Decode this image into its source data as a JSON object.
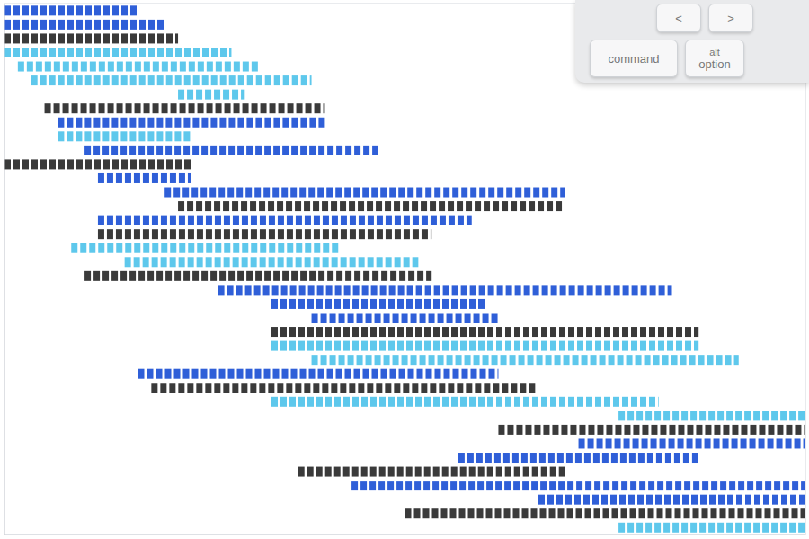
{
  "chart_data": {
    "type": "bar",
    "orientation": "horizontal",
    "grid": true,
    "tick_labels": false,
    "categories": [
      null,
      null,
      null,
      null,
      null,
      null,
      null,
      null,
      null,
      null,
      null,
      null,
      null,
      null,
      null,
      null,
      null,
      null,
      null,
      null,
      null,
      null,
      null,
      null,
      null,
      null,
      null,
      null,
      null,
      null,
      null,
      null,
      null,
      null,
      null,
      null,
      null,
      null
    ],
    "values": [
      [
        0,
        10
      ],
      [
        0,
        12
      ],
      [
        0,
        13
      ],
      [
        0,
        17
      ],
      [
        1,
        19
      ],
      [
        2,
        23
      ],
      [
        13,
        18
      ],
      [
        3,
        24
      ],
      [
        4,
        24
      ],
      [
        4,
        14
      ],
      [
        6,
        28
      ],
      [
        0,
        14
      ],
      [
        7,
        14
      ],
      [
        12,
        42
      ],
      [
        13,
        42
      ],
      [
        7,
        35
      ],
      [
        7,
        32
      ],
      [
        5,
        25
      ],
      [
        9,
        31
      ],
      [
        6,
        32
      ],
      [
        16,
        50
      ],
      [
        20,
        36
      ],
      [
        23,
        37
      ],
      [
        20,
        52
      ],
      [
        20,
        52
      ],
      [
        23,
        55
      ],
      [
        10,
        37
      ],
      [
        11,
        40
      ],
      [
        20,
        49
      ],
      [
        46,
        60
      ],
      [
        37,
        60
      ],
      [
        43,
        60
      ],
      [
        34,
        52
      ],
      [
        22,
        42
      ],
      [
        26,
        60
      ],
      [
        40,
        60
      ],
      [
        30,
        60
      ],
      [
        46,
        60
      ]
    ],
    "colors": [
      "#2f5fd8",
      "#2f5fd8",
      "#3a3a3a",
      "#5ec8ec",
      "#5ec8ec",
      "#5ec8ec",
      "#5ec8ec",
      "#3a3a3a",
      "#2f5fd8",
      "#5ec8ec",
      "#2f5fd8",
      "#3a3a3a",
      "#2f5fd8",
      "#2f5fd8",
      "#3a3a3a",
      "#2f5fd8",
      "#3a3a3a",
      "#5ec8ec",
      "#5ec8ec",
      "#3a3a3a",
      "#2f5fd8",
      "#2f5fd8",
      "#2f5fd8",
      "#3a3a3a",
      "#5ec8ec",
      "#5ec8ec",
      "#2f5fd8",
      "#3a3a3a",
      "#5ec8ec",
      "#5ec8ec",
      "#3a3a3a",
      "#2f5fd8",
      "#2f5fd8",
      "#3a3a3a",
      "#2f5fd8",
      "#2f5fd8",
      "#3a3a3a",
      "#5ec8ec"
    ],
    "xlim": [
      0,
      60
    ],
    "xticks": [
      0,
      1,
      2,
      3,
      4,
      5,
      6,
      7,
      8,
      9,
      10,
      11,
      12,
      13,
      14,
      15,
      16,
      17,
      18,
      19,
      20,
      21,
      22,
      23,
      24,
      25,
      26,
      27,
      28,
      29,
      30,
      31,
      32,
      33,
      34,
      35,
      36,
      37,
      38,
      39,
      40,
      41,
      42,
      43,
      44,
      45,
      46,
      47,
      48,
      49,
      50,
      51,
      52,
      53,
      54,
      55,
      56,
      57,
      58,
      59,
      60
    ],
    "annotations": [
      "<",
      ">",
      "command",
      "alt",
      "option"
    ]
  }
}
